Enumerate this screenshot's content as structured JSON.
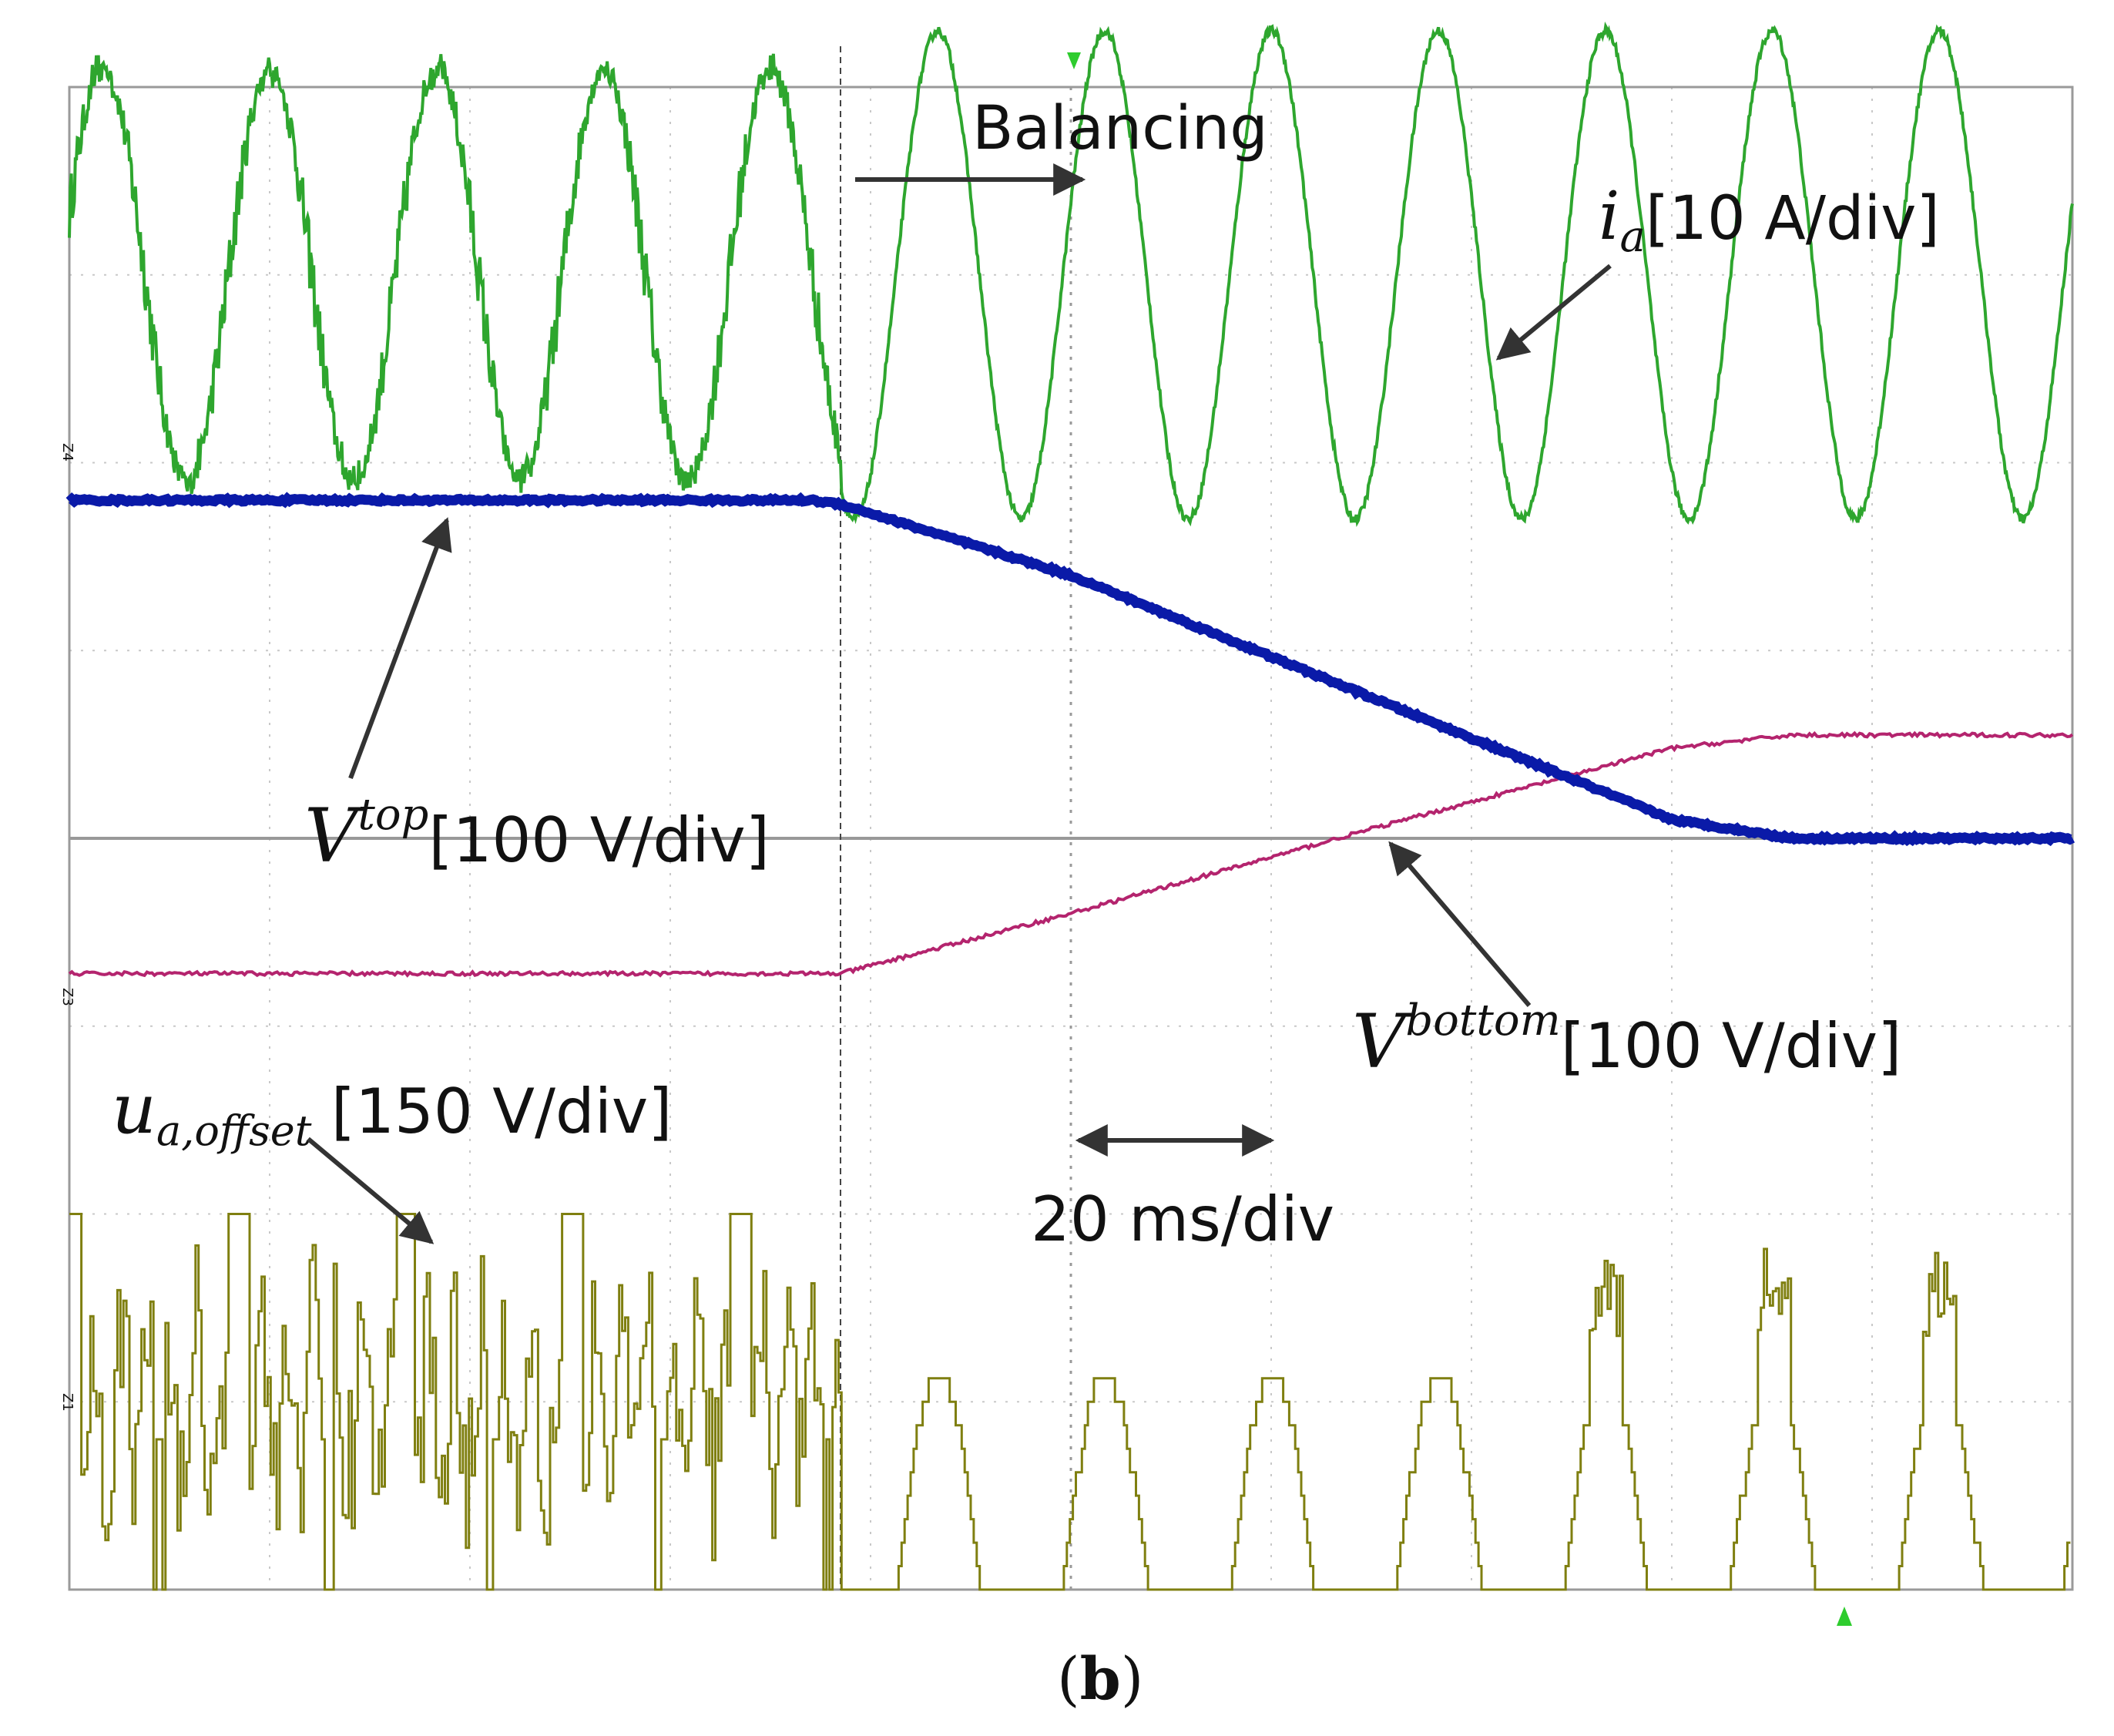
{
  "figure": {
    "panel_label": "b",
    "annotations": {
      "balancing": "Balancing",
      "timebase": "20 ms/div",
      "ia": {
        "sym": "i",
        "sub": "a",
        "scale": "[10 A/div]"
      },
      "vtop": {
        "sym": "V",
        "sup": "top",
        "scale": "[100 V/div]"
      },
      "vbottom": {
        "sym": "V",
        "sup": "bottom",
        "scale": "[100 V/div]"
      },
      "ua": {
        "sym": "u",
        "sub": "a,offset",
        "scale": " [150 V/div]"
      }
    },
    "channel_tags": [
      "Z4",
      "Z3",
      "Z1"
    ]
  },
  "chart_data": {
    "type": "line",
    "title": "",
    "xlabel": "",
    "ylabel": "",
    "x_unit": "ms",
    "time_per_div_ms": 20,
    "divisions": {
      "x": 10,
      "y": 8
    },
    "grid": true,
    "xlim": [
      0,
      200
    ],
    "balancing_start_ms": 77,
    "series": [
      {
        "name": "i_a",
        "color": "#2ea62e",
        "scale": "10 A/div",
        "unit": "A",
        "waveform": "sine",
        "frequency_hz": 60,
        "amplitude_before_A": 11,
        "amplitude_after_A": 13,
        "offset_div": 3.0
      },
      {
        "name": "V_top",
        "color": "#0a1aa8",
        "scale": "100 V/div",
        "unit": "V",
        "x": [
          0,
          74,
          77,
          100,
          130,
          160,
          172,
          200
        ],
        "y_div": [
          1.8,
          1.8,
          1.78,
          1.4,
          0.75,
          0.1,
          0.0,
          0.0
        ]
      },
      {
        "name": "V_bottom",
        "color": "#b4246e",
        "scale": "100 V/div",
        "unit": "V",
        "x": [
          0,
          77,
          100,
          130,
          160,
          172,
          200
        ],
        "y_div": [
          -0.72,
          -0.72,
          -0.4,
          0.05,
          0.48,
          0.55,
          0.55
        ]
      },
      {
        "name": "u_a,offset",
        "color": "#7f7f10",
        "scale": "150 V/div",
        "unit": "V",
        "waveform": "stepped",
        "level_min_div": 0,
        "level_max_div": 2
      }
    ]
  }
}
